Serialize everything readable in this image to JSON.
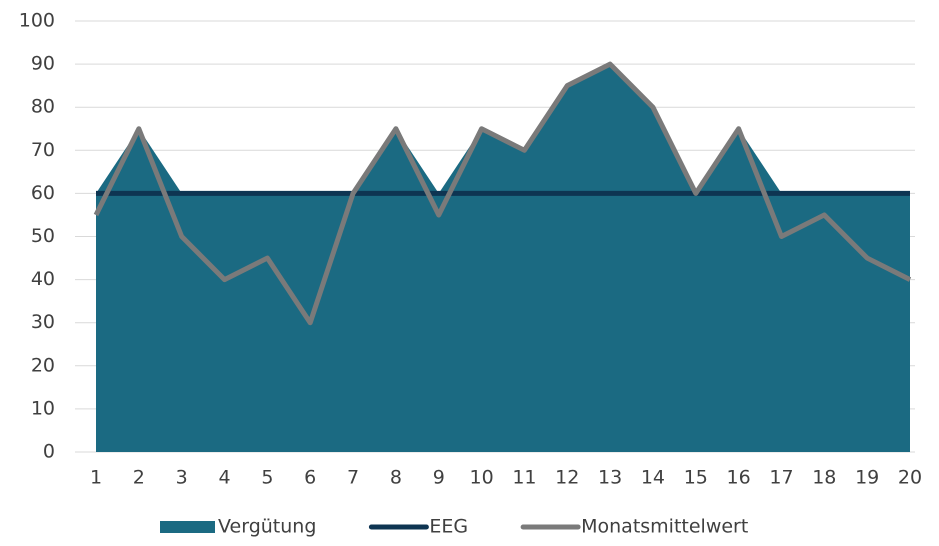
{
  "chart_data": {
    "type": "line",
    "categories": [
      "1",
      "2",
      "3",
      "4",
      "5",
      "6",
      "7",
      "8",
      "9",
      "10",
      "11",
      "12",
      "13",
      "14",
      "15",
      "16",
      "17",
      "18",
      "19",
      "20"
    ],
    "series": [
      {
        "name": "Vergütung",
        "type": "area",
        "color": "#1b6a82",
        "values": [
          60,
          75,
          60,
          60,
          60,
          60,
          60,
          75,
          60,
          75,
          70,
          85,
          90,
          80,
          60,
          75,
          60,
          60,
          60,
          60
        ]
      },
      {
        "name": "EEG",
        "type": "line",
        "color": "#0e3552",
        "values": [
          60,
          60,
          60,
          60,
          60,
          60,
          60,
          60,
          60,
          60,
          60,
          60,
          60,
          60,
          60,
          60,
          60,
          60,
          60,
          60
        ]
      },
      {
        "name": "Monatsmittelwert",
        "type": "line",
        "color": "#7a7a7a",
        "values": [
          55,
          75,
          50,
          40,
          45,
          30,
          60,
          75,
          55,
          75,
          70,
          85,
          90,
          80,
          60,
          75,
          50,
          55,
          45,
          40
        ]
      }
    ],
    "ylim": [
      0,
      100
    ],
    "yticks": [
      0,
      10,
      20,
      30,
      40,
      50,
      60,
      70,
      80,
      90,
      100
    ],
    "grid": true,
    "legend": "bottom"
  }
}
